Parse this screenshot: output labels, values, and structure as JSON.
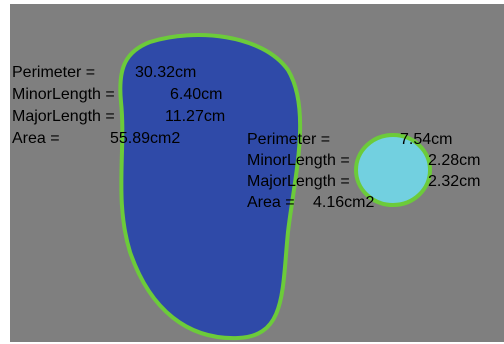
{
  "objects": [
    {
      "rows": [
        {
          "label": "Perimeter =",
          "value": "30.32cm"
        },
        {
          "label": "MinorLength =",
          "value": "6.40cm"
        },
        {
          "label": "MajorLength =",
          "value": "11.27cm"
        },
        {
          "label": "Area =",
          "value": "55.89cm2"
        }
      ]
    },
    {
      "rows": [
        {
          "label": "Perimeter =",
          "value": "7.54cm"
        },
        {
          "label": "MinorLength =",
          "value": "2.28cm"
        },
        {
          "label": "MajorLength =",
          "value": "2.32cm"
        },
        {
          "label": "Area =",
          "value": "4.16cm2"
        }
      ]
    }
  ]
}
